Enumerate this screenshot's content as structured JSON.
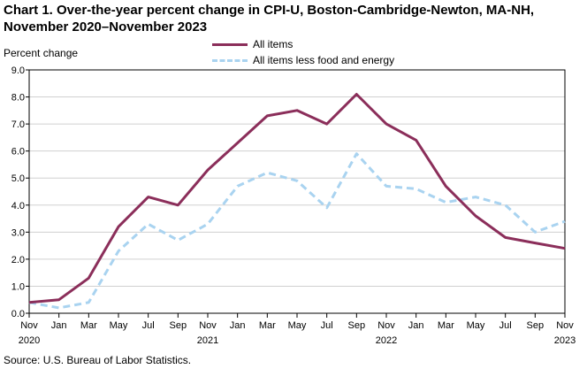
{
  "title_line1": "Chart 1. Over-the-year percent change in CPI-U, Boston-Cambridge-Newton, MA-NH,",
  "title_line2": "November 2020–November  2023",
  "source": "Source: U.S. Bureau of Labor Statistics.",
  "chart_data": {
    "type": "line",
    "title": "Chart 1. Over-the-year percent change in CPI-U, Boston-Cambridge-Newton, MA-NH, November 2020–November 2023",
    "ylabel": "Percent change",
    "xlabel": "",
    "ylim": [
      0,
      9
    ],
    "yticks": [
      "0.0",
      "1.0",
      "2.0",
      "3.0",
      "4.0",
      "5.0",
      "6.0",
      "7.0",
      "8.0",
      "9.0"
    ],
    "x": [
      "Nov 2020",
      "Jan",
      "Mar",
      "May",
      "Jul",
      "Sep",
      "Nov 2021",
      "Jan",
      "Mar",
      "May",
      "Jul",
      "Sep",
      "Nov 2022",
      "Jan",
      "Mar",
      "May",
      "Jul",
      "Sep",
      "Nov 2023"
    ],
    "x_tick_labels": [
      {
        "month": "Nov",
        "year": "2020"
      },
      {
        "month": "Jan",
        "year": ""
      },
      {
        "month": "Mar",
        "year": ""
      },
      {
        "month": "May",
        "year": ""
      },
      {
        "month": "Jul",
        "year": ""
      },
      {
        "month": "Sep",
        "year": ""
      },
      {
        "month": "Nov",
        "year": "2021"
      },
      {
        "month": "Jan",
        "year": ""
      },
      {
        "month": "Mar",
        "year": ""
      },
      {
        "month": "May",
        "year": ""
      },
      {
        "month": "Jul",
        "year": ""
      },
      {
        "month": "Sep",
        "year": ""
      },
      {
        "month": "Nov",
        "year": "2022"
      },
      {
        "month": "Jan",
        "year": ""
      },
      {
        "month": "Mar",
        "year": ""
      },
      {
        "month": "May",
        "year": ""
      },
      {
        "month": "Jul",
        "year": ""
      },
      {
        "month": "Sep",
        "year": ""
      },
      {
        "month": "Nov",
        "year": "2023"
      }
    ],
    "grid": true,
    "legend_position": "top-center",
    "series": [
      {
        "name": "All items",
        "color": "#8b2e5a",
        "style": "solid",
        "values": [
          0.4,
          0.5,
          1.3,
          3.2,
          4.3,
          4.0,
          5.3,
          6.3,
          7.3,
          7.5,
          7.0,
          8.1,
          7.0,
          6.4,
          4.7,
          3.6,
          2.8,
          2.6,
          2.4
        ]
      },
      {
        "name": "All items less food and energy",
        "color": "#a9d3f0",
        "style": "dashed",
        "values": [
          0.4,
          0.2,
          0.4,
          2.3,
          3.3,
          2.7,
          3.3,
          4.7,
          5.2,
          4.9,
          3.9,
          5.9,
          4.7,
          4.6,
          4.1,
          4.3,
          4.0,
          3.0,
          3.4
        ]
      }
    ]
  }
}
